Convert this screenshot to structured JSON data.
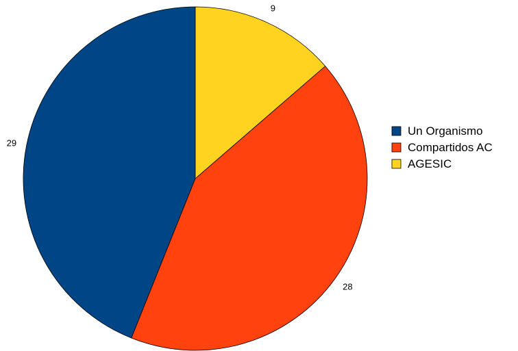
{
  "chart_data": {
    "type": "pie",
    "categories": [
      "Un Organismo",
      "Compartidos AC",
      "AGESIC"
    ],
    "values": [
      29,
      28,
      9
    ],
    "colors": [
      "#004586",
      "#ff420e",
      "#ffd320"
    ],
    "start": "top",
    "direction": "counterclockwise",
    "legend": {
      "position": "right",
      "entries": [
        "Un Organismo",
        "Compartidos AC",
        "AGESIC"
      ]
    }
  }
}
